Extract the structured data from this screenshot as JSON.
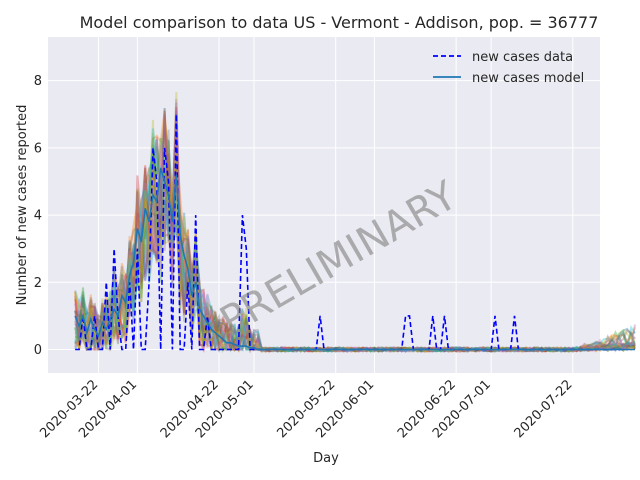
{
  "chart_data": {
    "type": "line",
    "title": "Model comparison to data US - Vermont - Addison, pop. = 36777",
    "xlabel": "Day",
    "ylabel": "Number of new cases reported",
    "x_range": [
      "2020-03-09",
      "2020-07-29"
    ],
    "ylim": [
      -0.7,
      9.3
    ],
    "y_ticks": [
      0,
      2,
      4,
      6,
      8
    ],
    "x_ticks": [
      {
        "date": "2020-03-22",
        "label": "2020-03-22"
      },
      {
        "date": "2020-04-01",
        "label": "2020-04-01"
      },
      {
        "date": "2020-04-22",
        "label": "2020-04-22"
      },
      {
        "date": "2020-05-01",
        "label": "2020-05-01"
      },
      {
        "date": "2020-05-22",
        "label": "2020-05-22"
      },
      {
        "date": "2020-06-01",
        "label": "2020-06-01"
      },
      {
        "date": "2020-06-22",
        "label": "2020-06-22"
      },
      {
        "date": "2020-07-01",
        "label": "2020-07-01"
      },
      {
        "date": "2020-07-22",
        "label": "2020-07-22"
      }
    ],
    "grid": true,
    "legend_position": "top-right",
    "watermark": "PRELIMINARY",
    "series": [
      {
        "name": "new cases data",
        "style": "dashed",
        "color": "#0000ff",
        "start_date": "2020-03-16",
        "values": [
          0,
          0,
          1,
          0,
          0,
          1,
          0,
          0,
          2,
          0,
          3,
          1,
          0,
          0,
          2,
          0,
          3,
          0,
          0,
          2,
          6,
          5,
          0,
          6,
          5,
          0,
          7,
          0,
          0,
          2,
          0,
          4,
          0,
          0,
          1,
          0,
          0,
          0,
          0,
          0,
          0,
          0,
          0,
          4,
          3,
          0,
          0,
          0,
          0,
          0,
          0,
          0,
          0,
          0,
          0,
          0,
          0,
          0,
          0,
          0,
          0,
          0,
          0,
          1,
          0,
          0,
          0,
          0,
          0,
          0,
          0,
          0,
          0,
          0,
          0,
          0,
          0,
          0,
          0,
          0,
          0,
          0,
          0,
          0,
          0,
          1,
          1,
          0,
          0,
          0,
          0,
          0,
          1,
          0,
          0,
          1,
          0,
          0,
          0,
          0,
          0,
          0,
          0,
          0,
          0,
          0,
          0,
          0,
          1,
          0,
          0,
          0,
          0,
          1,
          0,
          0,
          0,
          0,
          0,
          0,
          0,
          0,
          0,
          0,
          0,
          0,
          0,
          0,
          0,
          0,
          0,
          0,
          0,
          0,
          0,
          0,
          0,
          0,
          0,
          0,
          0,
          0,
          0
        ]
      },
      {
        "name": "new cases model",
        "style": "solid",
        "color": "#1f77b4",
        "start_date": "2020-03-16",
        "values": [
          1.0,
          0.7,
          1.0,
          0.5,
          0.9,
          0.6,
          0.4,
          0.8,
          0.6,
          0.9,
          1.2,
          1.0,
          1.6,
          1.4,
          2.2,
          2.6,
          3.6,
          3.2,
          4.2,
          3.8,
          4.6,
          4.4,
          5.4,
          5.0,
          4.6,
          3.8,
          5.2,
          3.4,
          2.8,
          2.4,
          1.6,
          2.0,
          1.2,
          1.0,
          0.8,
          0.6,
          0.5,
          0.4,
          0.3,
          0.2,
          0.2,
          0.15,
          0.1,
          0.1,
          0.1,
          0.05,
          0.05,
          0,
          0,
          0,
          0,
          0,
          0,
          0,
          0,
          0,
          0,
          0,
          0,
          0,
          0,
          0,
          0,
          0,
          0,
          0,
          0,
          0,
          0,
          0,
          0,
          0,
          0,
          0,
          0,
          0,
          0,
          0,
          0,
          0,
          0,
          0,
          0,
          0,
          0,
          0,
          0,
          0,
          0,
          0,
          0,
          0,
          0,
          0,
          0,
          0,
          0,
          0,
          0,
          0,
          0,
          0,
          0,
          0,
          0,
          0,
          0,
          0,
          0,
          0,
          0,
          0,
          0,
          0,
          0,
          0,
          0,
          0,
          0,
          0,
          0,
          0,
          0,
          0,
          0,
          0,
          0,
          0,
          0,
          0,
          0,
          0,
          0,
          0,
          0,
          0,
          0,
          0,
          0,
          0,
          0,
          0,
          0,
          0,
          0
        ]
      }
    ]
  },
  "colors": {
    "plot_background": "#eaeaf2",
    "grid": "#ffffff",
    "ensemble_palette": [
      "#1f77b4",
      "#ff7f0e",
      "#2ca02c",
      "#d62728",
      "#9467bd",
      "#8c564b",
      "#e377c2",
      "#7f7f7f",
      "#bcbd22",
      "#17becf"
    ]
  }
}
